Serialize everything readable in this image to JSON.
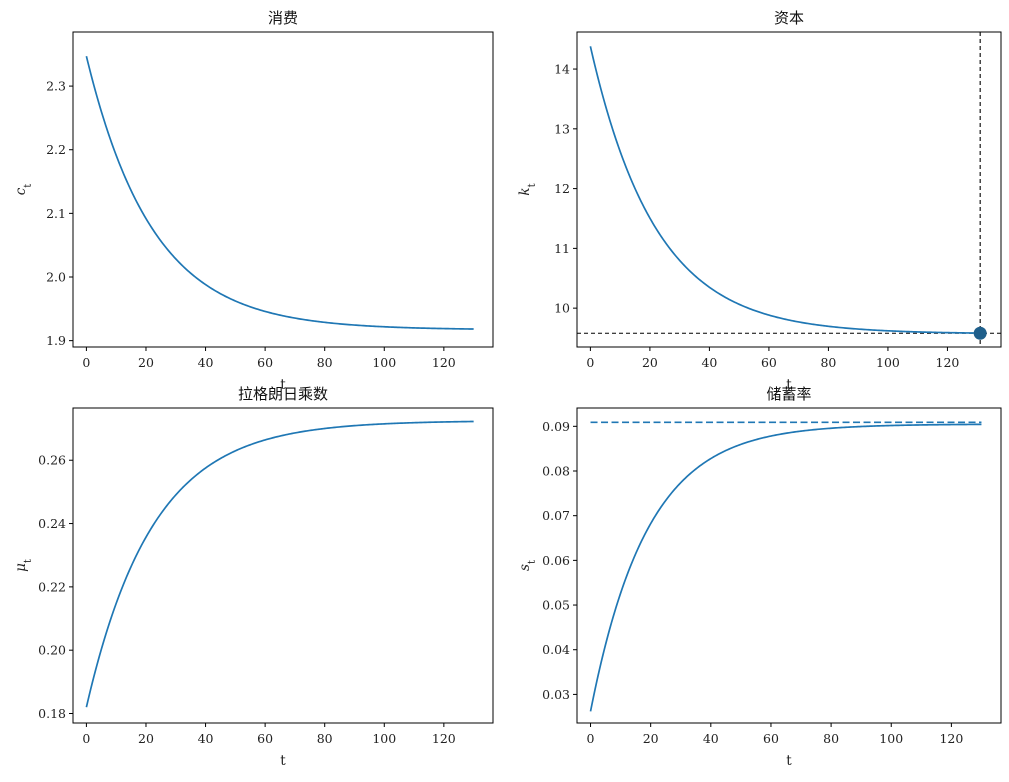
{
  "chart_data": [
    {
      "type": "line",
      "title": "消费",
      "xlabel": "t",
      "ylabel": "c",
      "ylabel_sub": "t",
      "xlim": [
        -4.5,
        136.5
      ],
      "ylim": [
        1.89,
        2.385
      ],
      "xticks": [
        0,
        20,
        40,
        60,
        80,
        100,
        120
      ],
      "yticks": [
        1.9,
        2.0,
        2.1,
        2.2,
        2.3
      ],
      "ytick_labels": [
        "1.9",
        "2.0",
        "2.1",
        "2.2",
        "2.3"
      ],
      "series": [
        {
          "kind": "exp",
          "x0": 0,
          "x1": 130,
          "y0": 2.347,
          "yinf": 1.917,
          "rate": 0.045
        }
      ],
      "grid": false
    },
    {
      "type": "line",
      "title": "资本",
      "xlabel": "t",
      "ylabel": "k",
      "ylabel_sub": "t",
      "xlim": [
        -4.5,
        138
      ],
      "ylim": [
        9.35,
        14.62
      ],
      "xticks": [
        0,
        20,
        40,
        60,
        80,
        100,
        120
      ],
      "yticks": [
        10,
        11,
        12,
        13,
        14
      ],
      "ytick_labels": [
        "10",
        "11",
        "12",
        "13",
        "14"
      ],
      "series": [
        {
          "kind": "exp",
          "x0": 0,
          "x1": 130,
          "y0": 14.38,
          "yinf": 9.57,
          "rate": 0.0455
        }
      ],
      "reference_lines": {
        "hline": 9.58,
        "vline": 131
      },
      "marker": {
        "x": 131,
        "y": 9.58
      },
      "grid": false
    },
    {
      "type": "line",
      "title": "拉格朗日乘数",
      "xlabel": "t",
      "ylabel": "μ",
      "ylabel_sub": "t",
      "xlim": [
        -4.5,
        136.5
      ],
      "ylim": [
        0.177,
        0.2765
      ],
      "xticks": [
        0,
        20,
        40,
        60,
        80,
        100,
        120
      ],
      "yticks": [
        0.18,
        0.2,
        0.22,
        0.24,
        0.26
      ],
      "ytick_labels": [
        "0.18",
        "0.20",
        "0.22",
        "0.24",
        "0.26"
      ],
      "series": [
        {
          "kind": "exp",
          "x0": 0,
          "x1": 130,
          "y0": 0.182,
          "yinf": 0.2725,
          "rate": 0.045
        }
      ],
      "grid": false
    },
    {
      "type": "line",
      "title": "储蓄率",
      "xlabel": "t",
      "ylabel": "s",
      "ylabel_sub": "t",
      "xlim": [
        -4.5,
        136.5
      ],
      "ylim": [
        0.0236,
        0.0941
      ],
      "xticks": [
        0,
        20,
        40,
        60,
        80,
        100,
        120
      ],
      "yticks": [
        0.03,
        0.04,
        0.05,
        0.06,
        0.07,
        0.08,
        0.09
      ],
      "ytick_labels": [
        "0.03",
        "0.04",
        "0.05",
        "0.06",
        "0.07",
        "0.08",
        "0.09"
      ],
      "series": [
        {
          "kind": "exp",
          "x0": 0,
          "x1": 130,
          "y0": 0.0262,
          "yinf": 0.0905,
          "rate": 0.053
        }
      ],
      "dashed_hline": {
        "y": 0.0909,
        "x0": 0,
        "x1": 130
      },
      "grid": false
    }
  ],
  "colors": {
    "series": "#1f77b4",
    "reference": "#000000",
    "marker": "#1f5f8b",
    "axes": "#000000"
  }
}
